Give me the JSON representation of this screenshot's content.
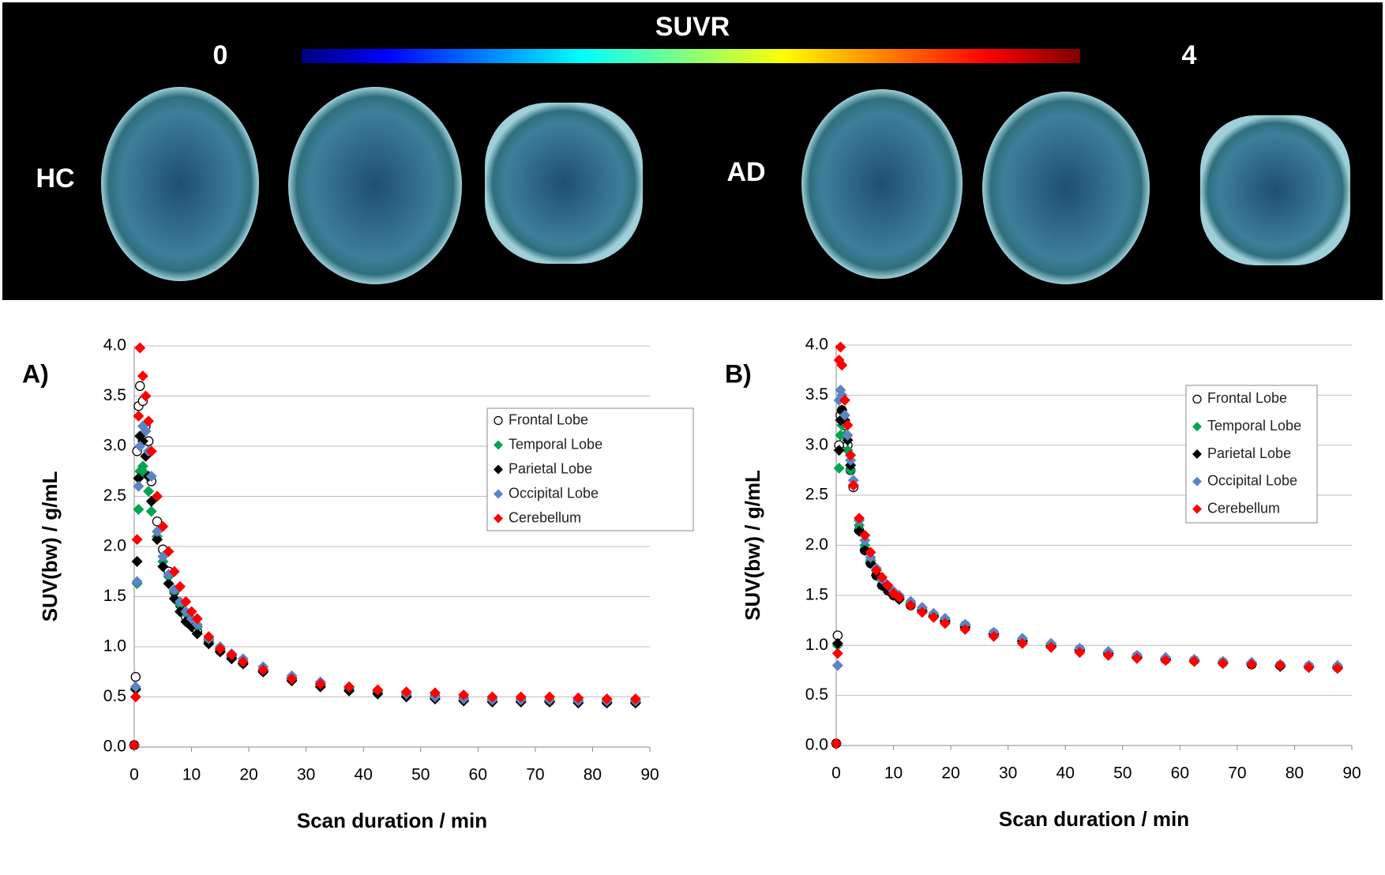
{
  "header": {
    "colorbar_title": "SUVR",
    "colorbar_min": 0,
    "colorbar_max": 4,
    "groups": [
      "HC",
      "AD"
    ]
  },
  "chart_data": [
    {
      "type": "scatter",
      "panel_label": "A)",
      "x_label": "Scan duration / min",
      "y_label": "SUV(bw) / g/mL",
      "x": [
        0,
        0.25,
        0.5,
        0.75,
        1,
        1.5,
        2,
        2.5,
        3,
        4,
        5,
        6,
        7,
        8,
        9,
        10,
        11,
        13,
        15,
        17,
        19,
        22.5,
        27.5,
        32.5,
        37.5,
        42.5,
        47.5,
        52.5,
        57.5,
        62.5,
        67.5,
        72.5,
        77.5,
        82.5,
        87.5
      ],
      "xlim": [
        0,
        90
      ],
      "xticks": [
        0,
        10,
        20,
        30,
        40,
        50,
        60,
        70,
        80,
        90
      ],
      "ylim": [
        0,
        4
      ],
      "yticks": [
        {
          "value": 0,
          "label": "0.0"
        },
        0.5,
        {
          "value": 1,
          "label": "1.0"
        },
        1.5,
        {
          "value": 2,
          "label": "2.0"
        },
        2.5,
        {
          "value": 3,
          "label": "3.0"
        },
        3.5,
        {
          "value": 4,
          "label": "4.0"
        }
      ],
      "grid": "y",
      "legend": "upper right",
      "series": [
        {
          "name": "Frontal Lobe",
          "color": "#000000",
          "marker": "open-circle",
          "values": [
            0.02,
            0.7,
            2.95,
            3.4,
            3.6,
            3.45,
            3.2,
            3.05,
            2.65,
            2.25,
            1.97,
            1.75,
            1.55,
            1.42,
            1.3,
            1.22,
            1.15,
            1.05,
            0.96,
            0.9,
            0.84,
            0.76,
            0.68,
            0.62,
            0.58,
            0.55,
            0.52,
            0.5,
            0.48,
            0.47,
            0.47,
            0.46,
            0.46,
            0.45,
            0.45
          ]
        },
        {
          "name": "Temporal Lobe",
          "color": "#00a550",
          "marker": "diamond",
          "values": [
            0.02,
            0.57,
            1.63,
            2.37,
            2.75,
            2.8,
            2.72,
            2.55,
            2.35,
            2.1,
            1.85,
            1.7,
            1.55,
            1.42,
            1.33,
            1.28,
            1.2,
            1.07,
            0.97,
            0.91,
            0.85,
            0.77,
            0.69,
            0.62,
            0.58,
            0.55,
            0.52,
            0.5,
            0.48,
            0.47,
            0.47,
            0.46,
            0.46,
            0.45,
            0.45
          ]
        },
        {
          "name": "Parietal Lobe",
          "color": "#000000",
          "marker": "diamond",
          "values": [
            0.02,
            0.58,
            1.85,
            2.68,
            3.1,
            3.05,
            2.9,
            2.7,
            2.45,
            2.07,
            1.8,
            1.63,
            1.48,
            1.35,
            1.25,
            1.2,
            1.13,
            1.03,
            0.95,
            0.88,
            0.83,
            0.75,
            0.66,
            0.6,
            0.56,
            0.53,
            0.5,
            0.48,
            0.46,
            0.45,
            0.45,
            0.45,
            0.44,
            0.44,
            0.44
          ]
        },
        {
          "name": "Occipital Lobe",
          "color": "#5b84c4",
          "marker": "diamond",
          "values": [
            0.02,
            0.6,
            1.65,
            2.6,
            3.0,
            3.2,
            3.15,
            2.95,
            2.7,
            2.15,
            1.9,
            1.72,
            1.57,
            1.45,
            1.35,
            1.28,
            1.22,
            1.08,
            1.0,
            0.93,
            0.88,
            0.8,
            0.71,
            0.65,
            0.6,
            0.57,
            0.53,
            0.5,
            0.48,
            0.47,
            0.47,
            0.47,
            0.46,
            0.46,
            0.46
          ]
        },
        {
          "name": "Cerebellum",
          "color": "#ff0000",
          "marker": "diamond",
          "values": [
            0.02,
            0.5,
            2.07,
            3.3,
            3.98,
            3.7,
            3.5,
            3.25,
            2.95,
            2.5,
            2.2,
            1.95,
            1.75,
            1.6,
            1.45,
            1.35,
            1.28,
            1.1,
            0.98,
            0.92,
            0.85,
            0.77,
            0.68,
            0.63,
            0.6,
            0.57,
            0.55,
            0.54,
            0.52,
            0.5,
            0.5,
            0.5,
            0.49,
            0.48,
            0.48
          ]
        }
      ]
    },
    {
      "type": "scatter",
      "panel_label": "B)",
      "x_label": "Scan duration / min",
      "y_label": "SUV(bw) / g/mL",
      "x": [
        0,
        0.25,
        0.5,
        0.75,
        1,
        1.5,
        2,
        2.5,
        3,
        4,
        5,
        6,
        7,
        8,
        9,
        10,
        11,
        13,
        15,
        17,
        19,
        22.5,
        27.5,
        32.5,
        37.5,
        42.5,
        47.5,
        52.5,
        57.5,
        62.5,
        67.5,
        72.5,
        77.5,
        82.5,
        87.5
      ],
      "xlim": [
        0,
        90
      ],
      "xticks": [
        0,
        10,
        20,
        30,
        40,
        50,
        60,
        70,
        80,
        90
      ],
      "ylim": [
        0,
        4
      ],
      "yticks": [
        {
          "value": 0,
          "label": "0.0"
        },
        0.5,
        {
          "value": 1,
          "label": "1.0"
        },
        1.5,
        {
          "value": 2,
          "label": "2.0"
        },
        2.5,
        {
          "value": 3,
          "label": "3.0"
        },
        3.5,
        {
          "value": 4,
          "label": "4.0"
        }
      ],
      "grid": "y",
      "legend": "upper right",
      "series": [
        {
          "name": "Frontal Lobe",
          "color": "#000000",
          "marker": "open-circle",
          "values": [
            0.02,
            1.1,
            3.0,
            3.3,
            3.35,
            3.2,
            3.0,
            2.75,
            2.58,
            2.15,
            1.95,
            1.82,
            1.7,
            1.6,
            1.55,
            1.5,
            1.47,
            1.4,
            1.35,
            1.3,
            1.25,
            1.2,
            1.12,
            1.05,
            1.0,
            0.96,
            0.92,
            0.89,
            0.86,
            0.85,
            0.83,
            0.81,
            0.8,
            0.79,
            0.78
          ]
        },
        {
          "name": "Temporal Lobe",
          "color": "#00a550",
          "marker": "diamond",
          "values": [
            0.02,
            1.0,
            2.77,
            3.1,
            3.2,
            3.1,
            2.95,
            2.75,
            2.6,
            2.2,
            2.0,
            1.85,
            1.75,
            1.65,
            1.57,
            1.52,
            1.48,
            1.42,
            1.36,
            1.3,
            1.25,
            1.2,
            1.12,
            1.05,
            1.01,
            0.96,
            0.92,
            0.89,
            0.87,
            0.85,
            0.83,
            0.82,
            0.8,
            0.79,
            0.78
          ]
        },
        {
          "name": "Parietal Lobe",
          "color": "#000000",
          "marker": "diamond",
          "values": [
            0.02,
            1.02,
            2.95,
            3.25,
            3.35,
            3.25,
            3.05,
            2.8,
            2.6,
            2.14,
            1.95,
            1.82,
            1.7,
            1.6,
            1.55,
            1.5,
            1.46,
            1.4,
            1.34,
            1.29,
            1.24,
            1.18,
            1.11,
            1.04,
            0.99,
            0.95,
            0.92,
            0.88,
            0.86,
            0.84,
            0.82,
            0.81,
            0.79,
            0.78,
            0.78
          ]
        },
        {
          "name": "Occipital Lobe",
          "color": "#5b84c4",
          "marker": "diamond",
          "values": [
            0.02,
            0.8,
            3.45,
            3.55,
            3.5,
            3.3,
            3.1,
            2.85,
            2.65,
            2.25,
            2.05,
            1.88,
            1.77,
            1.66,
            1.6,
            1.54,
            1.5,
            1.44,
            1.38,
            1.32,
            1.27,
            1.21,
            1.13,
            1.07,
            1.02,
            0.97,
            0.94,
            0.9,
            0.88,
            0.86,
            0.84,
            0.83,
            0.81,
            0.8,
            0.8
          ]
        },
        {
          "name": "Cerebellum",
          "color": "#ff0000",
          "marker": "diamond",
          "values": [
            0.02,
            0.92,
            3.85,
            3.98,
            3.8,
            3.45,
            3.2,
            2.9,
            2.6,
            2.27,
            2.1,
            1.93,
            1.75,
            1.68,
            1.6,
            1.52,
            1.48,
            1.4,
            1.33,
            1.28,
            1.22,
            1.16,
            1.09,
            1.02,
            0.98,
            0.93,
            0.9,
            0.87,
            0.85,
            0.84,
            0.82,
            0.81,
            0.8,
            0.78,
            0.77
          ]
        }
      ]
    }
  ]
}
